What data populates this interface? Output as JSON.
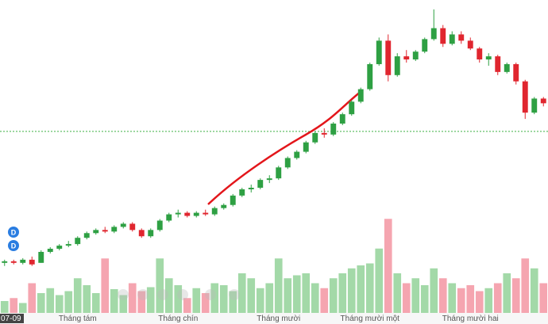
{
  "chart_data": {
    "type": "candlestick",
    "categories": [
      "07-09",
      null,
      null,
      null,
      null,
      null,
      null,
      null,
      "Tháng tám",
      null,
      null,
      null,
      null,
      null,
      null,
      null,
      null,
      null,
      null,
      "Tháng chín",
      null,
      null,
      null,
      null,
      null,
      null,
      null,
      null,
      null,
      null,
      "Tháng mười",
      null,
      null,
      null,
      null,
      null,
      null,
      null,
      null,
      null,
      "Tháng mười một",
      null,
      null,
      null,
      null,
      null,
      null,
      null,
      null,
      null,
      null,
      "Tháng mười hai",
      null,
      null,
      null,
      null,
      null,
      null,
      null,
      null
    ],
    "open": [
      16,
      16.5,
      16,
      17,
      16,
      19.5,
      20.5,
      21.5,
      22,
      24,
      25.5,
      26.5,
      26,
      27.5,
      28.5,
      26.5,
      24.5,
      26.5,
      29.5,
      31.5,
      32,
      31,
      32,
      31.5,
      33.5,
      34.5,
      37.5,
      39.5,
      40,
      42.5,
      43,
      46.5,
      49.5,
      51.5,
      54.5,
      57.5,
      57,
      60.5,
      63.5,
      67.5,
      71.5,
      79.5,
      87,
      76,
      82,
      81,
      83.5,
      87.5,
      91,
      86,
      89,
      87,
      84.5,
      81,
      82,
      77,
      79.5,
      74,
      64,
      68.5
    ],
    "high": [
      17,
      17,
      17.5,
      18,
      20,
      21,
      22,
      23,
      24.5,
      26,
      27,
      27.5,
      28,
      29,
      29,
      27,
      27,
      30,
      32,
      33,
      32.5,
      32.5,
      33,
      34,
      35,
      38,
      40,
      41,
      43,
      44,
      47,
      50,
      52,
      55,
      58,
      59,
      61,
      64,
      68,
      72,
      80,
      88,
      89,
      83,
      84,
      84,
      88,
      97,
      92,
      90,
      90,
      88,
      85,
      83,
      82.5,
      80,
      80,
      74.5,
      69,
      69
    ],
    "low": [
      15,
      15.5,
      15.5,
      15,
      16,
      19,
      20,
      21,
      21.5,
      23.5,
      25,
      25.5,
      25.5,
      27,
      26,
      24,
      24,
      26,
      29,
      30.5,
      30.5,
      30.5,
      31,
      31,
      33,
      34,
      37,
      38.5,
      39.5,
      41.5,
      42.5,
      46,
      49,
      51,
      54,
      56,
      56.5,
      60,
      63,
      67,
      71,
      79,
      74,
      75.5,
      80,
      80.5,
      83,
      87,
      85,
      85.5,
      86,
      84,
      80,
      79,
      76,
      76.5,
      73,
      62,
      63.5,
      66
    ],
    "close": [
      16.5,
      16,
      17,
      15.5,
      19.5,
      20.5,
      21.5,
      22,
      24,
      25.5,
      26.5,
      26,
      27.5,
      28.5,
      26.5,
      24.5,
      26.5,
      29.5,
      31.5,
      32,
      31,
      32,
      31.5,
      33.5,
      34.5,
      37.5,
      39.5,
      40,
      42.5,
      43,
      46.5,
      49.5,
      51.5,
      54.5,
      57.5,
      57,
      60.5,
      63.5,
      67.5,
      71.5,
      79.5,
      87,
      76,
      82,
      81,
      83.5,
      87.5,
      91,
      86,
      89,
      87,
      84.5,
      81,
      82,
      77,
      79.5,
      74,
      64,
      68.5,
      67
    ],
    "volume": [
      12,
      15,
      10,
      30,
      20,
      25,
      18,
      22,
      35,
      28,
      20,
      55,
      24,
      18,
      30,
      22,
      26,
      55,
      35,
      28,
      15,
      25,
      20,
      30,
      28,
      22,
      40,
      35,
      25,
      30,
      55,
      35,
      38,
      40,
      30,
      25,
      35,
      40,
      45,
      48,
      50,
      65,
      95,
      40,
      30,
      35,
      28,
      45,
      35,
      30,
      25,
      28,
      22,
      25,
      30,
      40,
      35,
      55,
      45,
      30
    ],
    "up_color": "#2ea043",
    "down_color": "#e0262f",
    "volume_up_color": "#a3d9a8",
    "volume_down_color": "#f5a5b0",
    "ylim": [
      0,
      100
    ],
    "volume_lim": [
      0,
      100
    ],
    "hline": {
      "value": 58,
      "color": "#3cb043"
    },
    "markers": [
      "D",
      "D"
    ]
  }
}
